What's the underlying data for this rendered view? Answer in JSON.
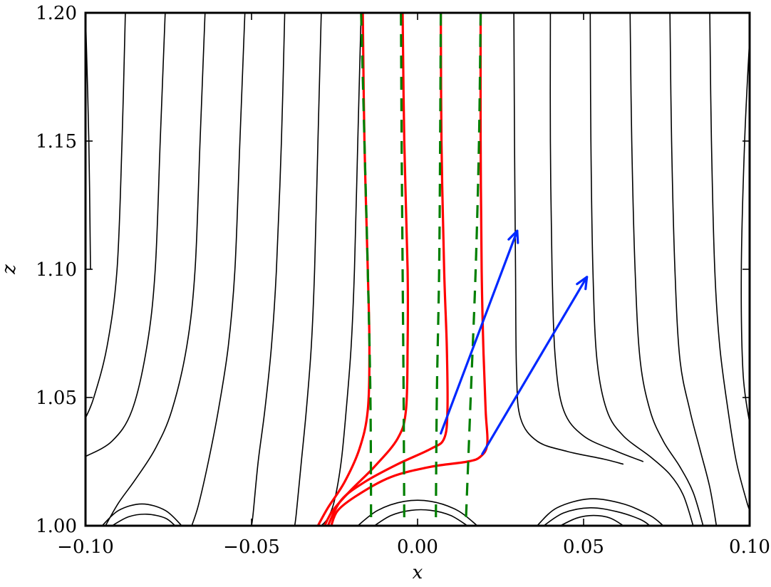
{
  "chart_data": {
    "type": "line",
    "xlabel": "x",
    "ylabel": "z",
    "xlim": [
      -0.1,
      0.1
    ],
    "ylim": [
      1.0,
      1.2
    ],
    "x_ticks": [
      -0.1,
      -0.05,
      0.0,
      0.05,
      0.1
    ],
    "x_tick_labels": [
      "−0.10",
      "−0.05",
      "0.00",
      "0.05",
      "0.10"
    ],
    "y_ticks": [
      1.0,
      1.05,
      1.1,
      1.15,
      1.2
    ],
    "y_tick_labels": [
      "1.00",
      "1.05",
      "1.10",
      "1.15",
      "1.20"
    ],
    "grid": false,
    "colors": {
      "field_lines": "#000000",
      "red_lines": "#ff0000",
      "dashed_lines": "#007f00",
      "arrows": "#0028ff"
    },
    "series": [
      {
        "style": "black-thin",
        "lines": [
          [
            [
              -0.1,
              1.2
            ],
            [
              -0.099,
              1.15
            ],
            [
              -0.0985,
              1.1
            ]
          ],
          [
            [
              -0.088,
              1.2
            ],
            [
              -0.089,
              1.15
            ],
            [
              -0.0905,
              1.1
            ],
            [
              -0.0935,
              1.07
            ],
            [
              -0.0975,
              1.05
            ],
            [
              -0.1,
              1.042
            ]
          ],
          [
            [
              -0.076,
              1.2
            ],
            [
              -0.0775,
              1.15
            ],
            [
              -0.079,
              1.1
            ],
            [
              -0.0815,
              1.07
            ],
            [
              -0.086,
              1.045
            ],
            [
              -0.092,
              1.033
            ],
            [
              -0.1,
              1.027
            ]
          ],
          [
            [
              -0.064,
              1.2
            ],
            [
              -0.0655,
              1.15
            ],
            [
              -0.067,
              1.1
            ],
            [
              -0.0695,
              1.07
            ],
            [
              -0.074,
              1.045
            ],
            [
              -0.079,
              1.03
            ],
            [
              -0.085,
              1.018
            ],
            [
              -0.09,
              1.009
            ],
            [
              -0.094,
              1.0
            ]
          ],
          [
            [
              -0.052,
              1.2
            ],
            [
              -0.0535,
              1.15
            ],
            [
              -0.055,
              1.1
            ],
            [
              -0.057,
              1.07
            ],
            [
              -0.06,
              1.045
            ],
            [
              -0.063,
              1.025
            ],
            [
              -0.066,
              1.008
            ],
            [
              -0.068,
              1.0
            ]
          ],
          [
            [
              -0.04,
              1.2
            ],
            [
              -0.041,
              1.15
            ],
            [
              -0.0425,
              1.1
            ],
            [
              -0.044,
              1.07
            ],
            [
              -0.046,
              1.045
            ],
            [
              -0.048,
              1.025
            ],
            [
              -0.0495,
              1.005
            ],
            [
              -0.05,
              1.0
            ]
          ],
          [
            [
              -0.029,
              1.2
            ],
            [
              -0.03,
              1.15
            ],
            [
              -0.031,
              1.1
            ],
            [
              -0.032,
              1.07
            ],
            [
              -0.0335,
              1.045
            ],
            [
              -0.035,
              1.025
            ],
            [
              -0.0365,
              1.005
            ],
            [
              -0.037,
              1.0
            ]
          ],
          [
            [
              -0.017,
              1.2
            ],
            [
              -0.018,
              1.15
            ],
            [
              -0.019,
              1.1
            ],
            [
              -0.02,
              1.07
            ],
            [
              -0.0215,
              1.045
            ],
            [
              -0.023,
              1.025
            ],
            [
              -0.025,
              1.01
            ],
            [
              -0.027,
              1.003
            ],
            [
              -0.029,
              1.0
            ]
          ],
          [
            [
              0.029,
              1.2
            ],
            [
              0.0292,
              1.15
            ],
            [
              0.0295,
              1.1
            ],
            [
              0.0298,
              1.06
            ],
            [
              0.031,
              1.042
            ],
            [
              0.036,
              1.033
            ],
            [
              0.045,
              1.029
            ],
            [
              0.056,
              1.026
            ],
            [
              0.062,
              1.024
            ]
          ],
          [
            [
              0.04,
              1.2
            ],
            [
              0.04,
              1.15
            ],
            [
              0.0405,
              1.1
            ],
            [
              0.0415,
              1.065
            ],
            [
              0.044,
              1.045
            ],
            [
              0.05,
              1.035
            ],
            [
              0.06,
              1.029
            ],
            [
              0.068,
              1.025
            ]
          ],
          [
            [
              0.052,
              1.2
            ],
            [
              0.0522,
              1.15
            ],
            [
              0.0528,
              1.1
            ],
            [
              0.054,
              1.065
            ],
            [
              0.057,
              1.045
            ],
            [
              0.062,
              1.035
            ],
            [
              0.07,
              1.027
            ],
            [
              0.076,
              1.02
            ],
            [
              0.08,
              1.012
            ],
            [
              0.083,
              1.0
            ]
          ],
          [
            [
              0.064,
              1.2
            ],
            [
              0.0645,
              1.15
            ],
            [
              0.0655,
              1.1
            ],
            [
              0.067,
              1.065
            ],
            [
              0.07,
              1.045
            ],
            [
              0.074,
              1.033
            ],
            [
              0.079,
              1.023
            ],
            [
              0.083,
              1.013
            ],
            [
              0.086,
              1.0
            ]
          ],
          [
            [
              0.076,
              1.2
            ],
            [
              0.0765,
              1.15
            ],
            [
              0.0775,
              1.1
            ],
            [
              0.079,
              1.065
            ],
            [
              0.082,
              1.045
            ],
            [
              0.085,
              1.03
            ],
            [
              0.088,
              1.015
            ],
            [
              0.09,
              1.0
            ]
          ],
          [
            [
              0.088,
              1.2
            ],
            [
              0.0885,
              1.15
            ],
            [
              0.0895,
              1.1
            ],
            [
              0.091,
              1.07
            ],
            [
              0.0935,
              1.045
            ],
            [
              0.096,
              1.025
            ],
            [
              0.099,
              1.01
            ],
            [
              0.1,
              1.006
            ]
          ],
          [
            [
              0.1,
              1.19
            ],
            [
              0.0985,
              1.15
            ],
            [
              0.0975,
              1.1
            ],
            [
              0.098,
              1.06
            ],
            [
              0.1,
              1.04
            ]
          ],
          [
            [
              -0.095,
              1.0
            ],
            [
              -0.09,
              1.006
            ],
            [
              -0.083,
              1.0085
            ],
            [
              -0.076,
              1.006
            ],
            [
              -0.071,
              1.0
            ]
          ],
          [
            [
              -0.092,
              1.0
            ],
            [
              -0.087,
              1.0035
            ],
            [
              -0.0815,
              1.0045
            ],
            [
              -0.076,
              1.003
            ],
            [
              -0.073,
              1.0
            ]
          ],
          [
            [
              -0.018,
              1.0
            ],
            [
              -0.012,
              1.006
            ],
            [
              -0.004,
              1.0095
            ],
            [
              0.004,
              1.0095
            ],
            [
              0.012,
              1.006
            ],
            [
              0.018,
              1.0
            ]
          ],
          [
            [
              -0.013,
              1.0
            ],
            [
              -0.008,
              1.004
            ],
            [
              -0.002,
              1.006
            ],
            [
              0.004,
              1.006
            ],
            [
              0.01,
              1.004
            ],
            [
              0.015,
              1.0
            ]
          ],
          [
            [
              0.036,
              1.0
            ],
            [
              0.042,
              1.007
            ],
            [
              0.052,
              1.0105
            ],
            [
              0.062,
              1.0085
            ],
            [
              0.07,
              1.004
            ],
            [
              0.074,
              1.0
            ]
          ],
          [
            [
              0.038,
              1.0
            ],
            [
              0.044,
              1.005
            ],
            [
              0.052,
              1.007
            ],
            [
              0.06,
              1.0055
            ],
            [
              0.067,
              1.0025
            ],
            [
              0.07,
              1.0
            ]
          ],
          [
            [
              0.043,
              1.0
            ],
            [
              0.048,
              1.003
            ],
            [
              0.053,
              1.004
            ],
            [
              0.058,
              1.003
            ],
            [
              0.062,
              1.0
            ]
          ]
        ]
      },
      {
        "style": "red-solid",
        "lines": [
          [
            [
              -0.0165,
              1.2
            ],
            [
              -0.016,
              1.15
            ],
            [
              -0.015,
              1.1
            ],
            [
              -0.0145,
              1.07
            ],
            [
              -0.015,
              1.045
            ],
            [
              -0.0175,
              1.03
            ],
            [
              -0.022,
              1.017
            ],
            [
              -0.027,
              1.007
            ],
            [
              -0.03,
              1.0
            ]
          ],
          [
            [
              -0.0045,
              1.2
            ],
            [
              -0.004,
              1.15
            ],
            [
              -0.003,
              1.1
            ],
            [
              -0.003,
              1.07
            ],
            [
              -0.0035,
              1.045
            ],
            [
              -0.006,
              1.034
            ],
            [
              -0.013,
              1.023
            ],
            [
              -0.02,
              1.014
            ],
            [
              -0.0255,
              1.006
            ],
            [
              -0.028,
              1.0
            ]
          ],
          [
            [
              0.007,
              1.2
            ],
            [
              0.0072,
              1.15
            ],
            [
              0.008,
              1.1
            ],
            [
              0.0088,
              1.07
            ],
            [
              0.009,
              1.045
            ],
            [
              0.008,
              1.034
            ],
            [
              0.004,
              1.03
            ],
            [
              -0.006,
              1.024
            ],
            [
              -0.016,
              1.017
            ],
            [
              -0.023,
              1.01
            ],
            [
              -0.027,
              1.0
            ]
          ],
          [
            [
              0.019,
              1.2
            ],
            [
              0.019,
              1.15
            ],
            [
              0.0193,
              1.1
            ],
            [
              0.0198,
              1.07
            ],
            [
              0.0205,
              1.045
            ],
            [
              0.021,
              1.032
            ],
            [
              0.019,
              1.027
            ],
            [
              0.015,
              1.025
            ],
            [
              0.004,
              1.023
            ],
            [
              -0.008,
              1.019
            ],
            [
              -0.018,
              1.012
            ],
            [
              -0.024,
              1.006
            ],
            [
              -0.026,
              1.0
            ]
          ]
        ]
      },
      {
        "style": "green-dashed",
        "lines": [
          [
            [
              -0.017,
              1.2
            ],
            [
              -0.016,
              1.15
            ],
            [
              -0.015,
              1.1
            ],
            [
              -0.0142,
              1.05
            ],
            [
              -0.014,
              1.0
            ]
          ],
          [
            [
              -0.005,
              1.2
            ],
            [
              -0.0048,
              1.15
            ],
            [
              -0.0045,
              1.1
            ],
            [
              -0.0042,
              1.05
            ],
            [
              -0.004,
              1.0
            ]
          ],
          [
            [
              0.007,
              1.2
            ],
            [
              0.0068,
              1.15
            ],
            [
              0.0065,
              1.1
            ],
            [
              0.0058,
              1.05
            ],
            [
              0.0055,
              1.0
            ]
          ],
          [
            [
              0.019,
              1.2
            ],
            [
              0.0185,
              1.15
            ],
            [
              0.0175,
              1.1
            ],
            [
              0.016,
              1.05
            ],
            [
              0.0145,
              1.0
            ]
          ]
        ]
      }
    ],
    "arrows": [
      {
        "from": [
          0.007,
          1.036
        ],
        "to": [
          0.03,
          1.115
        ]
      },
      {
        "from": [
          0.0195,
          1.028
        ],
        "to": [
          0.051,
          1.097
        ]
      }
    ]
  }
}
